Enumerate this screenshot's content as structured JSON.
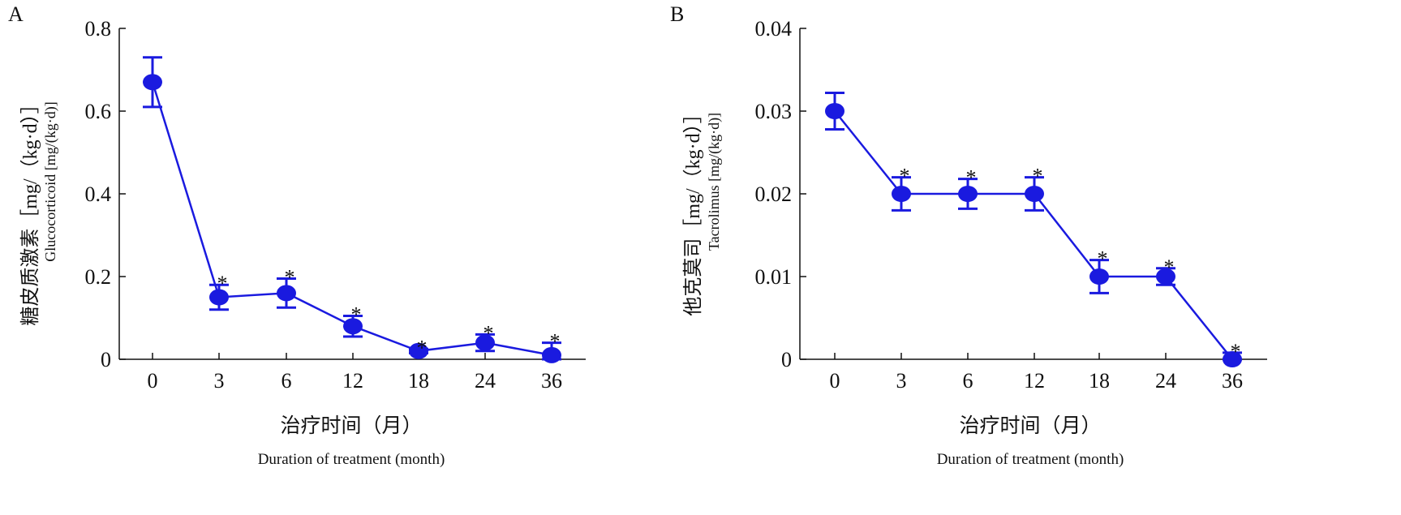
{
  "chart_data": [
    {
      "type": "line",
      "panel": "A",
      "ylabel_cn": "糖皮质激素［mg/（kg·d）］",
      "ylabel_en": "Glucocorticoid [mg/(kg·d)]",
      "xlabel_cn": "治疗时间（月）",
      "xlabel_en": "Duration of treatment (month)",
      "categories": [
        "0",
        "3",
        "6",
        "12",
        "18",
        "24",
        "36"
      ],
      "values": [
        0.67,
        0.15,
        0.16,
        0.08,
        0.02,
        0.04,
        0.01
      ],
      "error": [
        0.06,
        0.03,
        0.035,
        0.025,
        0.005,
        0.02,
        0.03
      ],
      "significance": [
        "",
        "*",
        "*",
        "*",
        "*",
        "*",
        "*"
      ],
      "ylim": [
        0,
        0.8
      ],
      "yticks": [
        "0",
        "0.2",
        "0.4",
        "0.6",
        "0.8"
      ],
      "ytick_values": [
        0,
        0.2,
        0.4,
        0.6,
        0.8
      ],
      "color": "#1a1adf"
    },
    {
      "type": "line",
      "panel": "B",
      "ylabel_cn": "他克莫司［mg/（kg·d）］",
      "ylabel_en": "Tacrolimus [mg/(kg·d)]",
      "xlabel_cn": "治疗时间（月）",
      "xlabel_en": "Duration of treatment (month)",
      "categories": [
        "0",
        "3",
        "6",
        "12",
        "18",
        "24",
        "36"
      ],
      "values": [
        0.03,
        0.02,
        0.02,
        0.02,
        0.01,
        0.01,
        0.0
      ],
      "error": [
        0.0022,
        0.002,
        0.0018,
        0.002,
        0.002,
        0.001,
        0.0008
      ],
      "significance": [
        "",
        "*",
        "*",
        "*",
        "*",
        "*",
        "*"
      ],
      "ylim": [
        0,
        0.04
      ],
      "yticks": [
        "0",
        "0.01",
        "0.02",
        "0.03",
        "0.04"
      ],
      "ytick_values": [
        0,
        0.01,
        0.02,
        0.03,
        0.04
      ],
      "color": "#1a1adf"
    }
  ]
}
